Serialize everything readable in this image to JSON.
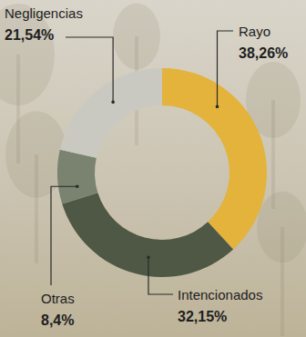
{
  "chart_data": {
    "type": "donut",
    "categories": [
      "Rayo",
      "Intencionados",
      "Otras",
      "Negligencias"
    ],
    "values": [
      38.26,
      32.15,
      8.4,
      21.54
    ],
    "value_labels": [
      "38,26%",
      "32,15%",
      "8,4%",
      "21,54%"
    ],
    "colors": [
      "#e3b33c",
      "#4e5844",
      "#7a8270",
      "#cac9c1"
    ],
    "data_labels": true
  }
}
